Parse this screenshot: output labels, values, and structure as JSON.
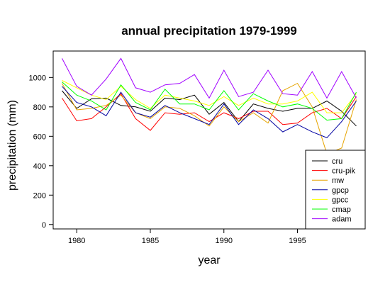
{
  "chart_data": {
    "type": "line",
    "title": "annual precipitation 1979-1999",
    "xlabel": "year",
    "ylabel": "precipitation (mm)",
    "xlim": [
      1978.4,
      1999.6
    ],
    "ylim": [
      -30,
      1180
    ],
    "x_ticks": [
      1980,
      1985,
      1990,
      1995
    ],
    "y_ticks": [
      0,
      200,
      400,
      600,
      800,
      1000
    ],
    "grid": false,
    "legend_position": "bottom-right",
    "x": [
      1979,
      1980,
      1981,
      1982,
      1983,
      1984,
      1985,
      1986,
      1987,
      1988,
      1989,
      1990,
      1991,
      1992,
      1993,
      1994,
      1995,
      1996,
      1997,
      1998,
      1999
    ],
    "series": [
      {
        "name": "cru",
        "color": "#000000",
        "values": [
          910,
          790,
          855,
          860,
          810,
          800,
          770,
          860,
          850,
          880,
          750,
          830,
          700,
          820,
          790,
          770,
          790,
          790,
          840,
          770,
          670
        ]
      },
      {
        "name": "cru-pik",
        "color": "#ff0000",
        "values": [
          860,
          705,
          720,
          800,
          890,
          720,
          640,
          760,
          750,
          760,
          700,
          760,
          720,
          770,
          770,
          680,
          690,
          760,
          790,
          720,
          870
        ]
      },
      {
        "name": "mw",
        "color": "#e6a400",
        "values": [
          960,
          780,
          790,
          810,
          880,
          760,
          720,
          800,
          790,
          740,
          670,
          800,
          700,
          760,
          690,
          910,
          960,
          800,
          480,
          520,
          850
        ]
      },
      {
        "name": "gpcp",
        "color": "#0000a0",
        "values": [
          940,
          830,
          800,
          740,
          900,
          760,
          730,
          810,
          760,
          720,
          680,
          820,
          680,
          780,
          720,
          630,
          680,
          630,
          590,
          700,
          840
        ]
      },
      {
        "name": "gpcc",
        "color": "#ffff00",
        "values": [
          980,
          930,
          880,
          850,
          940,
          850,
          790,
          880,
          860,
          840,
          810,
          870,
          810,
          860,
          820,
          820,
          840,
          900,
          760,
          760,
          890
        ]
      },
      {
        "name": "cmap",
        "color": "#00ff00",
        "values": [
          970,
          880,
          840,
          780,
          950,
          830,
          780,
          920,
          820,
          820,
          780,
          910,
          780,
          890,
          840,
          800,
          820,
          790,
          710,
          720,
          900
        ]
      },
      {
        "name": "adam",
        "color": "#a000ff",
        "values": [
          1130,
          940,
          880,
          990,
          1130,
          930,
          900,
          950,
          960,
          1020,
          860,
          1050,
          870,
          900,
          1050,
          890,
          880,
          1040,
          860,
          1040,
          860
        ]
      }
    ]
  }
}
